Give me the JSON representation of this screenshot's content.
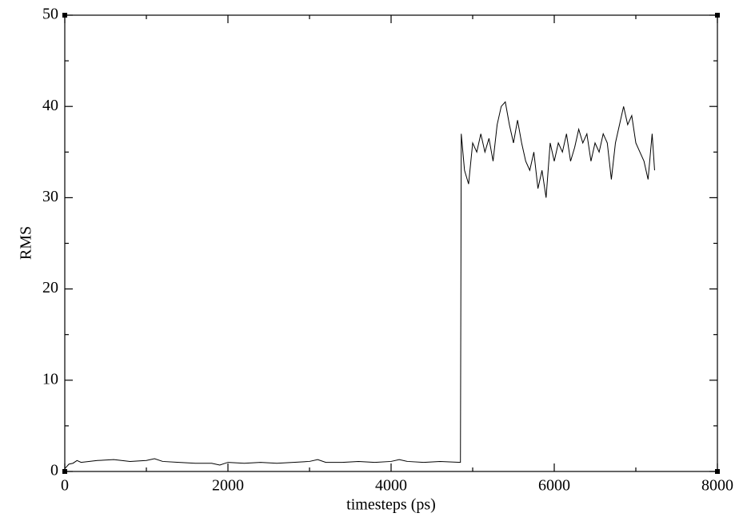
{
  "chart_data": {
    "type": "line",
    "xlabel": "timesteps (ps)",
    "ylabel": "RMS",
    "x": [
      0,
      50,
      100,
      150,
      200,
      400,
      600,
      800,
      1000,
      1100,
      1200,
      1400,
      1600,
      1800,
      1900,
      2000,
      2200,
      2400,
      2600,
      2800,
      3000,
      3100,
      3200,
      3400,
      3600,
      3800,
      4000,
      4100,
      4200,
      4400,
      4600,
      4850,
      4860,
      4900,
      4950,
      5000,
      5050,
      5100,
      5150,
      5200,
      5250,
      5300,
      5350,
      5400,
      5450,
      5500,
      5550,
      5600,
      5650,
      5700,
      5750,
      5800,
      5850,
      5900,
      5950,
      6000,
      6050,
      6100,
      6150,
      6200,
      6250,
      6300,
      6350,
      6400,
      6450,
      6500,
      6550,
      6600,
      6650,
      6700,
      6750,
      6800,
      6850,
      6900,
      6950,
      7000,
      7050,
      7100,
      7150,
      7200,
      7230
    ],
    "values": [
      0.3,
      0.8,
      0.9,
      1.2,
      1.0,
      1.2,
      1.3,
      1.1,
      1.2,
      1.4,
      1.1,
      1.0,
      0.9,
      0.9,
      0.7,
      1.0,
      0.9,
      1.0,
      0.9,
      1.0,
      1.1,
      1.3,
      1.0,
      1.0,
      1.1,
      1.0,
      1.1,
      1.3,
      1.1,
      1.0,
      1.1,
      1.0,
      37,
      33,
      31.5,
      36,
      35,
      37,
      35,
      36.5,
      34,
      38,
      40,
      40.5,
      38,
      36,
      38.5,
      36,
      34,
      33,
      35,
      31,
      33,
      30,
      36,
      34,
      36,
      35,
      37,
      34,
      35.5,
      37.5,
      36,
      37,
      34,
      36,
      35,
      37,
      36,
      32,
      36,
      38,
      40,
      38,
      39,
      36,
      35,
      34,
      32,
      37,
      33
    ],
    "color": "#000000",
    "xlim": [
      0,
      8000
    ],
    "xticks": [
      0,
      2000,
      4000,
      6000,
      8000
    ],
    "x_minor_ticks": [
      1000,
      3000,
      5000,
      7000
    ],
    "ylim": [
      0,
      50
    ],
    "yticks": [
      0,
      10,
      20,
      30,
      40,
      50
    ],
    "y_minor_ticks": [
      5,
      15,
      25,
      35,
      45
    ]
  }
}
